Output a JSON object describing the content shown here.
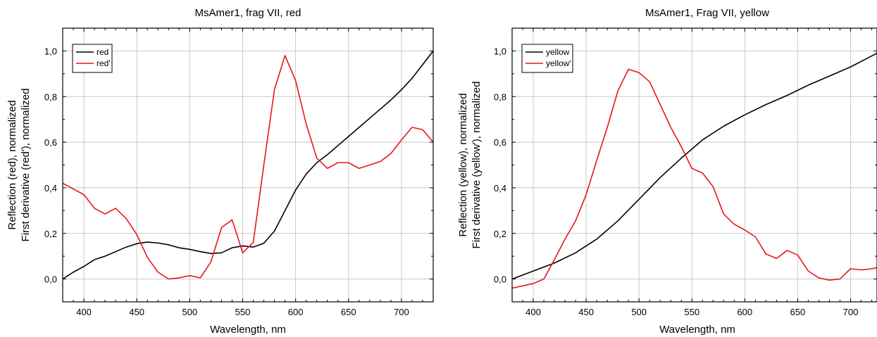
{
  "chart_data": [
    {
      "type": "line",
      "title": "MsAmer1, frag VII, red",
      "xlabel": "Wavelength, nm",
      "ylabel_line1": "Reflection (red), normalized",
      "ylabel_line2": "First derivative (red'), normalized",
      "xlim": [
        380,
        730
      ],
      "ylim": [
        -0.1,
        1.1
      ],
      "xticks": [
        400,
        450,
        500,
        550,
        600,
        650,
        700
      ],
      "xtick_labels": [
        "400",
        "450",
        "500",
        "550",
        "600",
        "650",
        "700"
      ],
      "yticks": [
        0.0,
        0.2,
        0.4,
        0.6,
        0.8,
        1.0
      ],
      "ytick_labels": [
        "0,0",
        "0,2",
        "0,4",
        "0,6",
        "0,8",
        "1,0"
      ],
      "grid": true,
      "legend_position": "top-left",
      "series": [
        {
          "name": "red",
          "color": "#000000",
          "x": [
            380,
            390,
            400,
            410,
            420,
            430,
            440,
            450,
            460,
            470,
            480,
            490,
            500,
            510,
            520,
            530,
            540,
            550,
            560,
            570,
            580,
            590,
            600,
            610,
            620,
            630,
            640,
            650,
            660,
            670,
            680,
            690,
            700,
            710,
            720,
            730
          ],
          "y": [
            0.0,
            0.03,
            0.055,
            0.085,
            0.1,
            0.12,
            0.14,
            0.155,
            0.162,
            0.158,
            0.15,
            0.137,
            0.13,
            0.12,
            0.112,
            0.115,
            0.137,
            0.145,
            0.14,
            0.157,
            0.21,
            0.3,
            0.39,
            0.46,
            0.51,
            0.545,
            0.585,
            0.625,
            0.665,
            0.705,
            0.745,
            0.785,
            0.83,
            0.88,
            0.94,
            1.0
          ]
        },
        {
          "name": "red'",
          "color": "#e8151b",
          "x": [
            380,
            390,
            400,
            410,
            420,
            430,
            440,
            450,
            460,
            470,
            480,
            490,
            500,
            510,
            520,
            530,
            540,
            550,
            560,
            570,
            580,
            590,
            600,
            610,
            620,
            630,
            640,
            650,
            660,
            670,
            680,
            690,
            700,
            710,
            720,
            730
          ],
          "y": [
            0.42,
            0.395,
            0.37,
            0.31,
            0.285,
            0.31,
            0.265,
            0.195,
            0.095,
            0.03,
            0.0,
            0.005,
            0.015,
            0.005,
            0.075,
            0.225,
            0.26,
            0.115,
            0.16,
            0.5,
            0.83,
            0.98,
            0.87,
            0.68,
            0.53,
            0.485,
            0.51,
            0.51,
            0.485,
            0.5,
            0.515,
            0.55,
            0.61,
            0.665,
            0.655,
            0.6
          ]
        }
      ]
    },
    {
      "type": "line",
      "title": "MsAmer1, Frag VII, yellow",
      "xlabel": "Wavelength, nm",
      "ylabel_line1": "Reflection (yellow), normalized",
      "ylabel_line2": "First derivative (yellow'), normalized",
      "xlim": [
        380,
        725
      ],
      "ylim": [
        -0.1,
        1.1
      ],
      "xticks": [
        400,
        450,
        500,
        550,
        600,
        650,
        700
      ],
      "xtick_labels": [
        "400",
        "450",
        "500",
        "550",
        "600",
        "650",
        "700"
      ],
      "yticks": [
        0.0,
        0.2,
        0.4,
        0.6,
        0.8,
        1.0
      ],
      "ytick_labels": [
        "0,0",
        "0,2",
        "0,4",
        "0,6",
        "0,8",
        "1,0"
      ],
      "grid": true,
      "legend_position": "top-left",
      "series": [
        {
          "name": "yellow",
          "color": "#000000",
          "x": [
            380,
            400,
            420,
            440,
            460,
            480,
            500,
            520,
            540,
            560,
            580,
            600,
            620,
            640,
            660,
            680,
            700,
            725
          ],
          "y": [
            0.0,
            0.035,
            0.07,
            0.115,
            0.175,
            0.255,
            0.35,
            0.445,
            0.53,
            0.61,
            0.67,
            0.72,
            0.765,
            0.805,
            0.85,
            0.89,
            0.93,
            0.99
          ]
        },
        {
          "name": "yellow'",
          "color": "#e8151b",
          "x": [
            380,
            390,
            400,
            410,
            420,
            430,
            440,
            450,
            460,
            470,
            480,
            490,
            500,
            510,
            520,
            530,
            540,
            550,
            560,
            570,
            580,
            590,
            600,
            610,
            620,
            630,
            640,
            650,
            660,
            670,
            680,
            690,
            700,
            710,
            720,
            725
          ],
          "y": [
            -0.04,
            -0.03,
            -0.02,
            0.0,
            0.085,
            0.175,
            0.255,
            0.37,
            0.52,
            0.665,
            0.825,
            0.92,
            0.905,
            0.865,
            0.765,
            0.665,
            0.58,
            0.485,
            0.465,
            0.405,
            0.285,
            0.24,
            0.215,
            0.185,
            0.11,
            0.09,
            0.125,
            0.105,
            0.035,
            0.005,
            -0.005,
            0.0,
            0.045,
            0.04,
            0.045,
            0.05
          ]
        }
      ]
    }
  ]
}
